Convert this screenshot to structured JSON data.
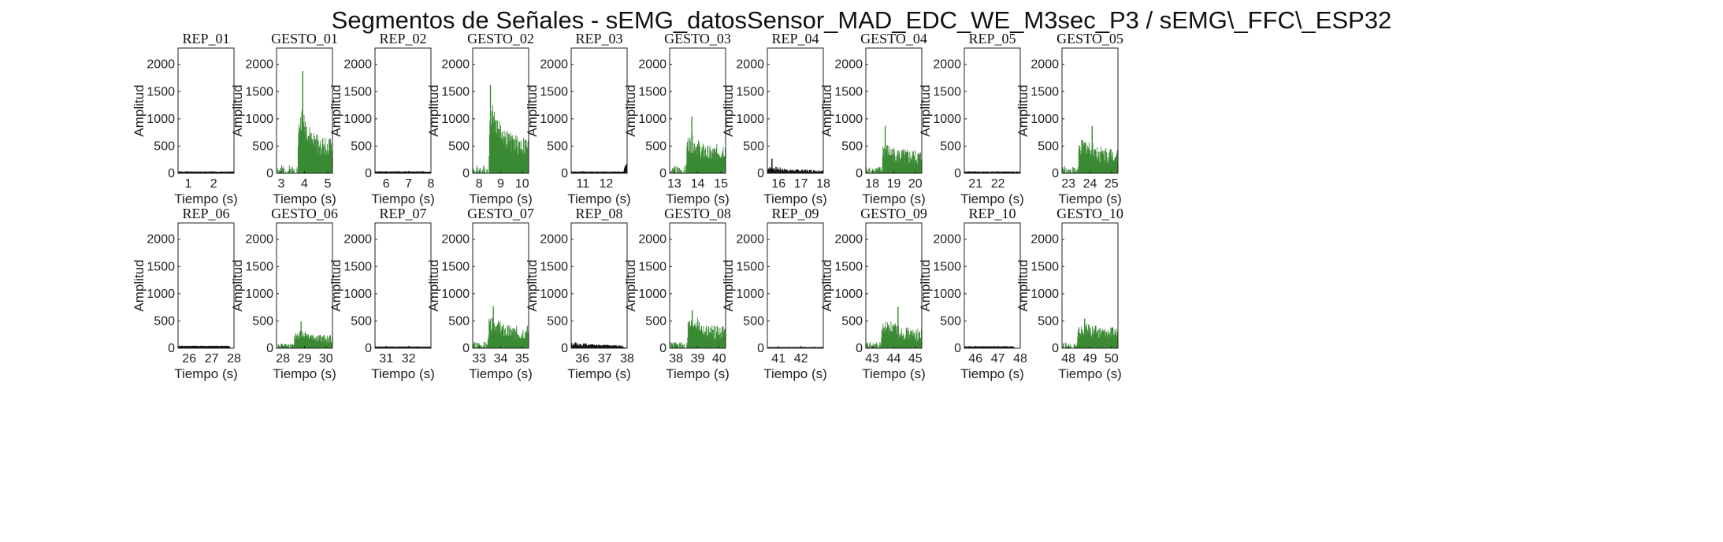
{
  "title": "Segmentos de Señales - sEMG_datosSensor_MAD_EDC_WE_M3sec_P3 / sEMG\\_FFC\\_ESP32",
  "colors": {
    "rest": "#111111",
    "gesture": "#3a8a33",
    "axes": "#222222"
  },
  "chart_data": [
    {
      "type": "area",
      "title": "REP_01",
      "kind": "rest",
      "xlim": [
        0.6,
        2.8
      ],
      "ylim": [
        0,
        2300
      ],
      "xticks": [
        1,
        2
      ],
      "yticks": [
        0,
        500,
        1000,
        1500,
        2000
      ],
      "xlabel": "Tiempo (s)",
      "ylabel": "Amplitud",
      "seed": 1,
      "x": [
        0.6,
        2.8
      ],
      "y": [
        30,
        30
      ],
      "noise": 20
    },
    {
      "type": "area",
      "title": "GESTO_01",
      "kind": "gesture",
      "xlim": [
        2.8,
        5.2
      ],
      "ylim": [
        0,
        2300
      ],
      "xticks": [
        3,
        4,
        5
      ],
      "yticks": [
        0,
        500,
        1000,
        1500,
        2000
      ],
      "xlabel": "Tiempo (s)",
      "ylabel": "Amplitud",
      "seed": 2,
      "x": [
        2.8,
        3.7,
        3.75,
        3.9,
        4.0,
        4.2,
        4.5,
        4.8,
        5.2
      ],
      "y": [
        30,
        30,
        750,
        1000,
        900,
        650,
        520,
        480,
        420
      ],
      "noise": 380,
      "peak": [
        3.92,
        1880
      ]
    },
    {
      "type": "area",
      "title": "REP_02",
      "kind": "rest",
      "xlim": [
        5.5,
        8.0
      ],
      "ylim": [
        0,
        2300
      ],
      "xticks": [
        6,
        7,
        8
      ],
      "yticks": [
        0,
        500,
        1000,
        1500,
        2000
      ],
      "xlabel": "Tiempo (s)",
      "ylabel": "Amplitud",
      "seed": 3,
      "x": [
        5.5,
        8.0
      ],
      "y": [
        32,
        32
      ],
      "noise": 22
    },
    {
      "type": "area",
      "title": "GESTO_02",
      "kind": "gesture",
      "xlim": [
        7.7,
        10.3
      ],
      "ylim": [
        0,
        2300
      ],
      "xticks": [
        8,
        9,
        10
      ],
      "yticks": [
        0,
        500,
        1000,
        1500,
        2000
      ],
      "xlabel": "Tiempo (s)",
      "ylabel": "Amplitud",
      "seed": 4,
      "x": [
        7.7,
        8.45,
        8.5,
        8.6,
        8.8,
        9.2,
        9.6,
        10.0,
        10.3
      ],
      "y": [
        30,
        30,
        900,
        1100,
        850,
        600,
        520,
        480,
        450
      ],
      "noise": 380,
      "peak": [
        8.52,
        1620
      ]
    },
    {
      "type": "area",
      "title": "REP_03",
      "kind": "rest",
      "xlim": [
        10.5,
        12.9
      ],
      "ylim": [
        0,
        2300
      ],
      "xticks": [
        11,
        12
      ],
      "yticks": [
        0,
        500,
        1000,
        1500,
        2000
      ],
      "xlabel": "Tiempo (s)",
      "ylabel": "Amplitud",
      "seed": 5,
      "x": [
        10.5,
        12.75,
        12.8,
        12.9
      ],
      "y": [
        30,
        30,
        120,
        180
      ],
      "noise": 18
    },
    {
      "type": "area",
      "title": "GESTO_03",
      "kind": "gesture",
      "xlim": [
        12.8,
        15.2
      ],
      "ylim": [
        0,
        2300
      ],
      "xticks": [
        13,
        14,
        15
      ],
      "yticks": [
        0,
        500,
        1000,
        1500,
        2000
      ],
      "xlabel": "Tiempo (s)",
      "ylabel": "Amplitud",
      "seed": 6,
      "x": [
        12.8,
        13.5,
        13.55,
        13.8,
        14.2,
        14.6,
        15.2
      ],
      "y": [
        30,
        30,
        520,
        520,
        380,
        320,
        420
      ],
      "noise": 330,
      "peak": [
        13.75,
        1040
      ]
    },
    {
      "type": "area",
      "title": "REP_04",
      "kind": "rest",
      "xlim": [
        15.5,
        18.0
      ],
      "ylim": [
        0,
        2300
      ],
      "xticks": [
        16,
        17,
        18
      ],
      "yticks": [
        0,
        500,
        1000,
        1500,
        2000
      ],
      "xlabel": "Tiempo (s)",
      "ylabel": "Amplitud",
      "seed": 7,
      "x": [
        15.5,
        16.0,
        16.5,
        17.5,
        18.0
      ],
      "y": [
        90,
        70,
        50,
        45,
        40
      ],
      "noise": 80,
      "peak": [
        15.7,
        270
      ]
    },
    {
      "type": "area",
      "title": "GESTO_04",
      "kind": "gesture",
      "xlim": [
        17.7,
        20.3
      ],
      "ylim": [
        0,
        2300
      ],
      "xticks": [
        18,
        19,
        20
      ],
      "yticks": [
        0,
        500,
        1000,
        1500,
        2000
      ],
      "xlabel": "Tiempo (s)",
      "ylabel": "Amplitud",
      "seed": 8,
      "x": [
        17.7,
        18.45,
        18.5,
        18.8,
        19.2,
        19.6,
        20.3
      ],
      "y": [
        30,
        30,
        420,
        360,
        300,
        280,
        260
      ],
      "noise": 300,
      "peak": [
        18.6,
        870
      ]
    },
    {
      "type": "area",
      "title": "REP_05",
      "kind": "rest",
      "xlim": [
        20.5,
        23.0
      ],
      "ylim": [
        0,
        2300
      ],
      "xticks": [
        21,
        22
      ],
      "yticks": [
        0,
        500,
        1000,
        1500,
        2000
      ],
      "xlabel": "Tiempo (s)",
      "ylabel": "Amplitud",
      "seed": 9,
      "x": [
        20.5,
        23.0
      ],
      "y": [
        30,
        30
      ],
      "noise": 20
    },
    {
      "type": "area",
      "title": "GESTO_05",
      "kind": "gesture",
      "xlim": [
        22.7,
        25.3
      ],
      "ylim": [
        0,
        2300
      ],
      "xticks": [
        23,
        24,
        25
      ],
      "yticks": [
        0,
        500,
        1000,
        1500,
        2000
      ],
      "xlabel": "Tiempo (s)",
      "ylabel": "Amplitud",
      "seed": 10,
      "x": [
        22.7,
        23.45,
        23.5,
        23.8,
        24.2,
        24.6,
        25.3
      ],
      "y": [
        30,
        30,
        420,
        480,
        380,
        320,
        330
      ],
      "noise": 320,
      "peak": [
        24.1,
        870
      ]
    },
    {
      "type": "area",
      "title": "REP_06",
      "kind": "rest",
      "xlim": [
        25.5,
        28.0
      ],
      "ylim": [
        0,
        2300
      ],
      "xticks": [
        26,
        27,
        28
      ],
      "yticks": [
        0,
        500,
        1000,
        1500,
        2000
      ],
      "xlabel": "Tiempo (s)",
      "ylabel": "Amplitud",
      "seed": 11,
      "x": [
        25.5,
        27.8,
        27.85,
        28.0
      ],
      "y": [
        40,
        40,
        0,
        0
      ],
      "noise": 22
    },
    {
      "type": "area",
      "title": "GESTO_06",
      "kind": "gesture",
      "xlim": [
        27.7,
        30.3
      ],
      "ylim": [
        0,
        2300
      ],
      "xticks": [
        28,
        29,
        30
      ],
      "yticks": [
        0,
        500,
        1000,
        1500,
        2000
      ],
      "xlabel": "Tiempo (s)",
      "ylabel": "Amplitud",
      "seed": 12,
      "x": [
        27.7,
        28.5,
        28.55,
        28.9,
        29.3,
        29.8,
        30.3
      ],
      "y": [
        30,
        30,
        220,
        260,
        200,
        160,
        150
      ],
      "noise": 170,
      "peak": [
        28.85,
        490
      ]
    },
    {
      "type": "area",
      "title": "REP_07",
      "kind": "rest",
      "xlim": [
        30.5,
        33.0
      ],
      "ylim": [
        0,
        2300
      ],
      "xticks": [
        31,
        32
      ],
      "yticks": [
        0,
        500,
        1000,
        1500,
        2000
      ],
      "xlabel": "Tiempo (s)",
      "ylabel": "Amplitud",
      "seed": 13,
      "x": [
        30.5,
        33.0
      ],
      "y": [
        28,
        28
      ],
      "noise": 18
    },
    {
      "type": "area",
      "title": "GESTO_07",
      "kind": "gesture",
      "xlim": [
        32.7,
        35.3
      ],
      "ylim": [
        0,
        2300
      ],
      "xticks": [
        33,
        34,
        35
      ],
      "yticks": [
        0,
        500,
        1000,
        1500,
        2000
      ],
      "xlabel": "Tiempo (s)",
      "ylabel": "Amplitud",
      "seed": 14,
      "x": [
        32.7,
        33.4,
        33.45,
        33.7,
        34.2,
        34.8,
        35.3
      ],
      "y": [
        30,
        30,
        380,
        420,
        280,
        260,
        280
      ],
      "noise": 280,
      "peak": [
        33.65,
        770
      ]
    },
    {
      "type": "area",
      "title": "REP_08",
      "kind": "rest",
      "xlim": [
        35.5,
        38.0
      ],
      "ylim": [
        0,
        2300
      ],
      "xticks": [
        36,
        37,
        38
      ],
      "yticks": [
        0,
        500,
        1000,
        1500,
        2000
      ],
      "xlabel": "Tiempo (s)",
      "ylabel": "Amplitud",
      "seed": 15,
      "x": [
        35.5,
        36.2,
        37.0,
        37.8,
        37.85,
        38.0
      ],
      "y": [
        70,
        60,
        50,
        40,
        0,
        0
      ],
      "noise": 50,
      "peak": [
        35.7,
        110
      ]
    },
    {
      "type": "area",
      "title": "GESTO_08",
      "kind": "gesture",
      "xlim": [
        37.7,
        40.3
      ],
      "ylim": [
        0,
        2300
      ],
      "xticks": [
        38,
        39,
        40
      ],
      "yticks": [
        0,
        500,
        1000,
        1500,
        2000
      ],
      "xlabel": "Tiempo (s)",
      "ylabel": "Amplitud",
      "seed": 16,
      "x": [
        37.7,
        38.5,
        38.55,
        38.9,
        39.3,
        39.8,
        40.3
      ],
      "y": [
        30,
        30,
        380,
        460,
        300,
        280,
        290
      ],
      "noise": 270,
      "peak": [
        38.75,
        700
      ]
    },
    {
      "type": "area",
      "title": "REP_09",
      "kind": "rest",
      "xlim": [
        40.5,
        43.0
      ],
      "ylim": [
        0,
        2300
      ],
      "xticks": [
        41,
        42
      ],
      "yticks": [
        0,
        500,
        1000,
        1500,
        2000
      ],
      "xlabel": "Tiempo (s)",
      "ylabel": "Amplitud",
      "seed": 17,
      "x": [
        40.5,
        43.0
      ],
      "y": [
        20,
        20
      ],
      "noise": 14
    },
    {
      "type": "area",
      "title": "GESTO_09",
      "kind": "gesture",
      "xlim": [
        42.7,
        45.3
      ],
      "ylim": [
        0,
        2300
      ],
      "xticks": [
        43,
        44,
        45
      ],
      "yticks": [
        0,
        500,
        1000,
        1500,
        2000
      ],
      "xlabel": "Tiempo (s)",
      "ylabel": "Amplitud",
      "seed": 18,
      "x": [
        42.7,
        43.4,
        43.45,
        43.8,
        44.3,
        44.8,
        45.3
      ],
      "y": [
        30,
        30,
        330,
        380,
        280,
        230,
        220
      ],
      "noise": 250,
      "peak": [
        44.2,
        760
      ]
    },
    {
      "type": "area",
      "title": "REP_10",
      "kind": "rest",
      "xlim": [
        45.5,
        48.0
      ],
      "ylim": [
        0,
        2300
      ],
      "xticks": [
        46,
        47,
        48
      ],
      "yticks": [
        0,
        500,
        1000,
        1500,
        2000
      ],
      "xlabel": "Tiempo (s)",
      "ylabel": "Amplitud",
      "seed": 19,
      "x": [
        45.5,
        47.7,
        47.75,
        48.0
      ],
      "y": [
        32,
        32,
        0,
        0
      ],
      "noise": 20
    },
    {
      "type": "area",
      "title": "GESTO_10",
      "kind": "gesture",
      "xlim": [
        47.7,
        50.3
      ],
      "ylim": [
        0,
        2300
      ],
      "xticks": [
        48,
        49,
        50
      ],
      "yticks": [
        0,
        500,
        1000,
        1500,
        2000
      ],
      "xlabel": "Tiempo (s)",
      "ylabel": "Amplitud",
      "seed": 20,
      "x": [
        47.7,
        48.4,
        48.45,
        48.8,
        49.3,
        49.8,
        50.3
      ],
      "y": [
        30,
        30,
        260,
        330,
        280,
        250,
        260
      ],
      "noise": 240,
      "peak": [
        48.75,
        540
      ]
    }
  ]
}
